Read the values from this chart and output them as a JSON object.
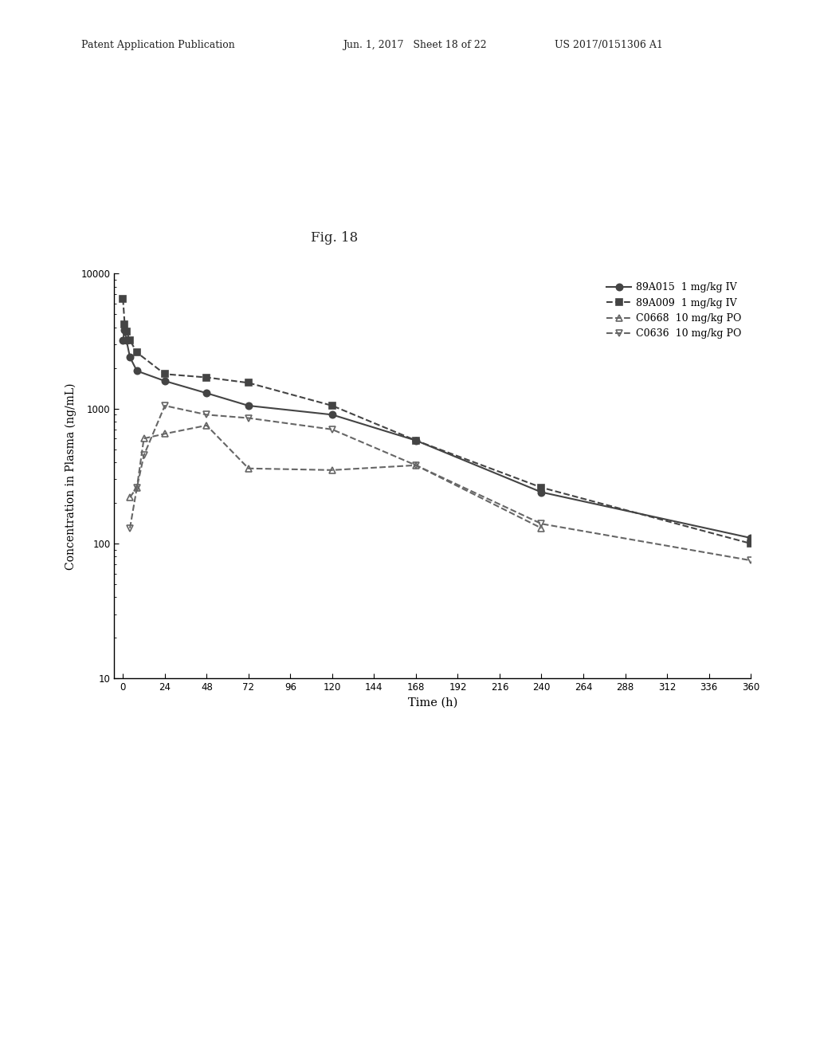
{
  "title": "Fig. 18",
  "xlabel": "Time (h)",
  "ylabel": "Concentration in Plasma (ng/mL)",
  "header_left": "Patent Application Publication",
  "header_mid": "Jun. 1, 2017   Sheet 18 of 22",
  "header_right": "US 2017/0151306 A1",
  "series": [
    {
      "label": "89A015  1 mg/kg IV",
      "x": [
        0,
        1,
        2,
        4,
        8,
        24,
        48,
        72,
        120,
        168,
        240,
        360
      ],
      "y": [
        3200,
        3800,
        3200,
        2400,
        1900,
        1600,
        1300,
        1050,
        900,
        580,
        240,
        110
      ],
      "color": "#444444",
      "linestyle": "-",
      "marker": "o",
      "marker_filled": true,
      "linewidth": 1.5,
      "markersize": 6
    },
    {
      "label": "89A009  1 mg/kg IV",
      "x": [
        0,
        1,
        2,
        4,
        8,
        24,
        48,
        72,
        120,
        168,
        240,
        360
      ],
      "y": [
        6500,
        4200,
        3700,
        3200,
        2600,
        1800,
        1700,
        1550,
        1050,
        580,
        260,
        100
      ],
      "color": "#444444",
      "linestyle": "--",
      "marker": "s",
      "marker_filled": true,
      "linewidth": 1.5,
      "markersize": 6
    },
    {
      "label": "C0668  10 mg/kg PO",
      "x": [
        4,
        8,
        12,
        24,
        48,
        72,
        120,
        168,
        240
      ],
      "y": [
        220,
        260,
        600,
        650,
        750,
        360,
        350,
        380,
        130
      ],
      "color": "#666666",
      "linestyle": "--",
      "marker": "^",
      "marker_filled": false,
      "linewidth": 1.5,
      "markersize": 6
    },
    {
      "label": "C0636  10 mg/kg PO",
      "x": [
        4,
        8,
        12,
        24,
        48,
        72,
        120,
        168,
        240,
        360
      ],
      "y": [
        130,
        260,
        450,
        1050,
        900,
        850,
        700,
        380,
        140,
        75
      ],
      "color": "#666666",
      "linestyle": "--",
      "marker": "v",
      "marker_filled": false,
      "linewidth": 1.5,
      "markersize": 6
    }
  ],
  "xlim": [
    -5,
    360
  ],
  "ylim": [
    10,
    10000
  ],
  "xticks": [
    0,
    24,
    48,
    72,
    96,
    120,
    144,
    168,
    192,
    216,
    240,
    264,
    288,
    312,
    336,
    360
  ],
  "yticks": [
    10,
    100,
    1000,
    10000
  ],
  "ytick_labels": [
    "10",
    "100",
    "1000",
    "10000"
  ],
  "background_color": "#ffffff",
  "figsize": [
    10.24,
    13.2
  ],
  "dpi": 100
}
